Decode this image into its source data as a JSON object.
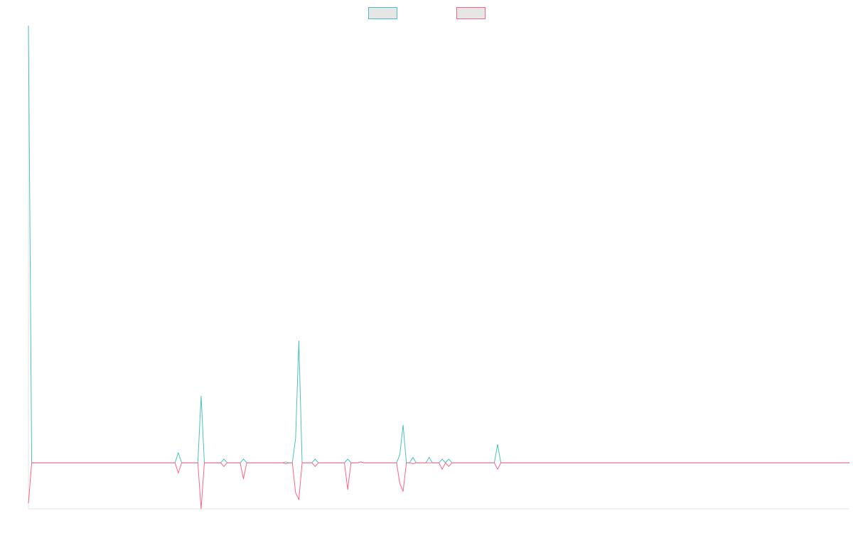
{
  "chart_data": {
    "type": "line",
    "title": "",
    "xlabel": "",
    "ylabel": "",
    "ylim": [
      -100,
      950
    ],
    "grid": false,
    "legend_position": "top-center",
    "x": [
      0,
      1,
      2,
      3,
      4,
      5,
      6,
      7,
      8,
      9,
      10,
      11,
      12,
      13,
      14,
      15,
      16,
      17,
      18,
      19,
      20,
      21,
      22,
      23,
      24,
      25,
      26,
      27,
      28,
      29,
      30,
      31,
      32,
      33,
      34,
      35,
      36,
      37,
      38,
      39,
      40,
      41,
      42,
      43,
      44,
      45,
      46,
      47,
      48,
      49,
      50,
      51,
      52,
      53,
      54,
      55,
      56,
      57,
      58,
      59,
      60,
      61,
      62,
      63,
      64,
      65,
      66,
      67,
      68,
      69,
      70,
      71,
      72,
      73,
      74,
      75,
      76,
      77,
      78,
      79,
      80,
      81,
      82,
      83,
      84,
      85,
      86,
      87,
      88,
      89,
      90,
      91,
      92,
      93,
      94,
      95,
      96,
      97,
      98,
      99,
      100,
      101,
      102,
      103,
      104,
      105,
      106,
      107,
      108,
      109,
      110,
      111,
      112,
      113,
      114,
      115,
      116,
      117,
      118,
      119,
      120,
      121,
      122,
      123,
      124,
      125,
      126,
      127,
      128,
      129,
      130,
      131,
      132,
      133,
      134,
      135,
      136,
      137,
      138,
      139,
      140,
      141,
      142,
      143,
      144,
      145,
      146,
      147,
      148,
      149,
      150,
      151,
      152,
      153,
      154,
      155,
      156,
      157,
      158,
      159,
      160,
      161,
      162,
      163,
      164,
      165,
      166,
      167,
      168,
      169,
      170,
      171,
      172,
      173,
      174,
      175,
      176,
      177,
      178,
      179,
      180,
      181,
      182,
      183,
      184,
      185,
      186,
      187,
      188,
      189,
      190,
      191,
      192,
      193,
      194,
      195,
      196,
      197,
      198,
      199,
      200,
      201,
      202,
      203,
      204,
      205,
      206,
      207,
      208,
      209,
      210,
      211,
      212,
      213,
      214,
      215,
      216,
      217,
      218,
      219,
      220,
      221,
      222,
      223,
      224,
      225,
      226,
      227,
      228,
      229,
      230,
      231,
      232,
      233,
      234,
      235,
      236,
      237,
      238,
      239,
      240,
      241,
      242,
      243,
      244,
      245,
      246,
      247,
      248,
      249,
      250,
      251,
      252
    ],
    "sparse": {
      "series_a": {
        "0": 950,
        "46": 22,
        "53": 145,
        "60": 8,
        "66": 8,
        "79": 2,
        "82": 53,
        "83": 265,
        "88": 8,
        "98": 8,
        "102": 2,
        "114": 18,
        "115": 82,
        "118": 12,
        "123": 12,
        "127": 8,
        "129": 8,
        "144": 40
      },
      "series_b": {
        "0": -88,
        "46": -22,
        "53": -100,
        "60": -8,
        "66": -35,
        "79": -2,
        "82": -65,
        "83": -80,
        "88": -8,
        "98": -58,
        "102": 2,
        "114": -45,
        "115": -62,
        "118": -2,
        "127": -14,
        "129": -8,
        "144": -14
      }
    },
    "series": [
      {
        "name": "",
        "color": "#4bc0c0"
      },
      {
        "name": "",
        "color": "#ff6384"
      }
    ],
    "legend": [
      {
        "label": "",
        "color": "#4bc0c0",
        "fill": "#e6e6e6"
      },
      {
        "label": "",
        "color": "#ff6384",
        "fill": "#e6e6e6"
      }
    ]
  }
}
